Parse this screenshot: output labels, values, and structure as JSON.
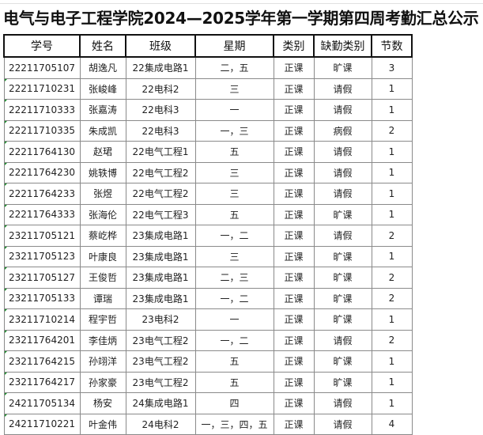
{
  "title": "电气与电子工程学院2024—2025学年第一学期第四周考勤汇总公示",
  "headers": [
    "学号",
    "姓名",
    "班级",
    "星期",
    "类别",
    "缺勤类别",
    "节数"
  ],
  "rows": [
    [
      "22211705107",
      "胡逸凡",
      "22集成电路1",
      "二，五",
      "正课",
      "旷课",
      "3"
    ],
    [
      "22211710231",
      "张峻峰",
      "22电科2",
      "三",
      "正课",
      "请假",
      "1"
    ],
    [
      "22211710333",
      "张嘉涛",
      "22电科3",
      "一",
      "正课",
      "请假",
      "1"
    ],
    [
      "22211710335",
      "朱成凯",
      "22电科3",
      "一，三",
      "正课",
      "病假",
      "2"
    ],
    [
      "22211764130",
      "赵珺",
      "22电气工程1",
      "五",
      "正课",
      "请假",
      "1"
    ],
    [
      "22211764230",
      "姚轶博",
      "22电气工程2",
      "三",
      "正课",
      "请假",
      "1"
    ],
    [
      "22211764233",
      "张煜",
      "22电气工程2",
      "三",
      "正课",
      "请假",
      "1"
    ],
    [
      "22211764333",
      "张海伦",
      "22电气工程3",
      "五",
      "正课",
      "旷课",
      "1"
    ],
    [
      "23211705121",
      "蔡屹桦",
      "23集成电路1",
      "一，二",
      "正课",
      "请假",
      "2"
    ],
    [
      "23211705123",
      "叶康良",
      "23集成电路1",
      "三",
      "正课",
      "旷课",
      "1"
    ],
    [
      "23211705127",
      "王俊哲",
      "23集成电路1",
      "二，三",
      "正课",
      "旷课",
      "2"
    ],
    [
      "23211705133",
      "谭瑞",
      "23集成电路1",
      "一，二",
      "正课",
      "旷课",
      "2"
    ],
    [
      "23211710214",
      "程宇哲",
      "23电科2",
      "一",
      "正课",
      "旷课",
      "1"
    ],
    [
      "23211764201",
      "李佳炳",
      "23电气工程2",
      "一，二",
      "正课",
      "请假",
      "2"
    ],
    [
      "23211764215",
      "孙翊洋",
      "23电气工程2",
      "五",
      "正课",
      "旷课",
      "1"
    ],
    [
      "23211764217",
      "孙家豪",
      "23电气工程2",
      "五",
      "正课",
      "旷课",
      "1"
    ],
    [
      "24211705134",
      "杨安",
      "24集成电路1",
      "四",
      "正课",
      "请假",
      "1"
    ],
    [
      "24211710221",
      "叶金伟",
      "24电科2",
      "一，三，四，五",
      "正课",
      "请假",
      "4"
    ]
  ]
}
